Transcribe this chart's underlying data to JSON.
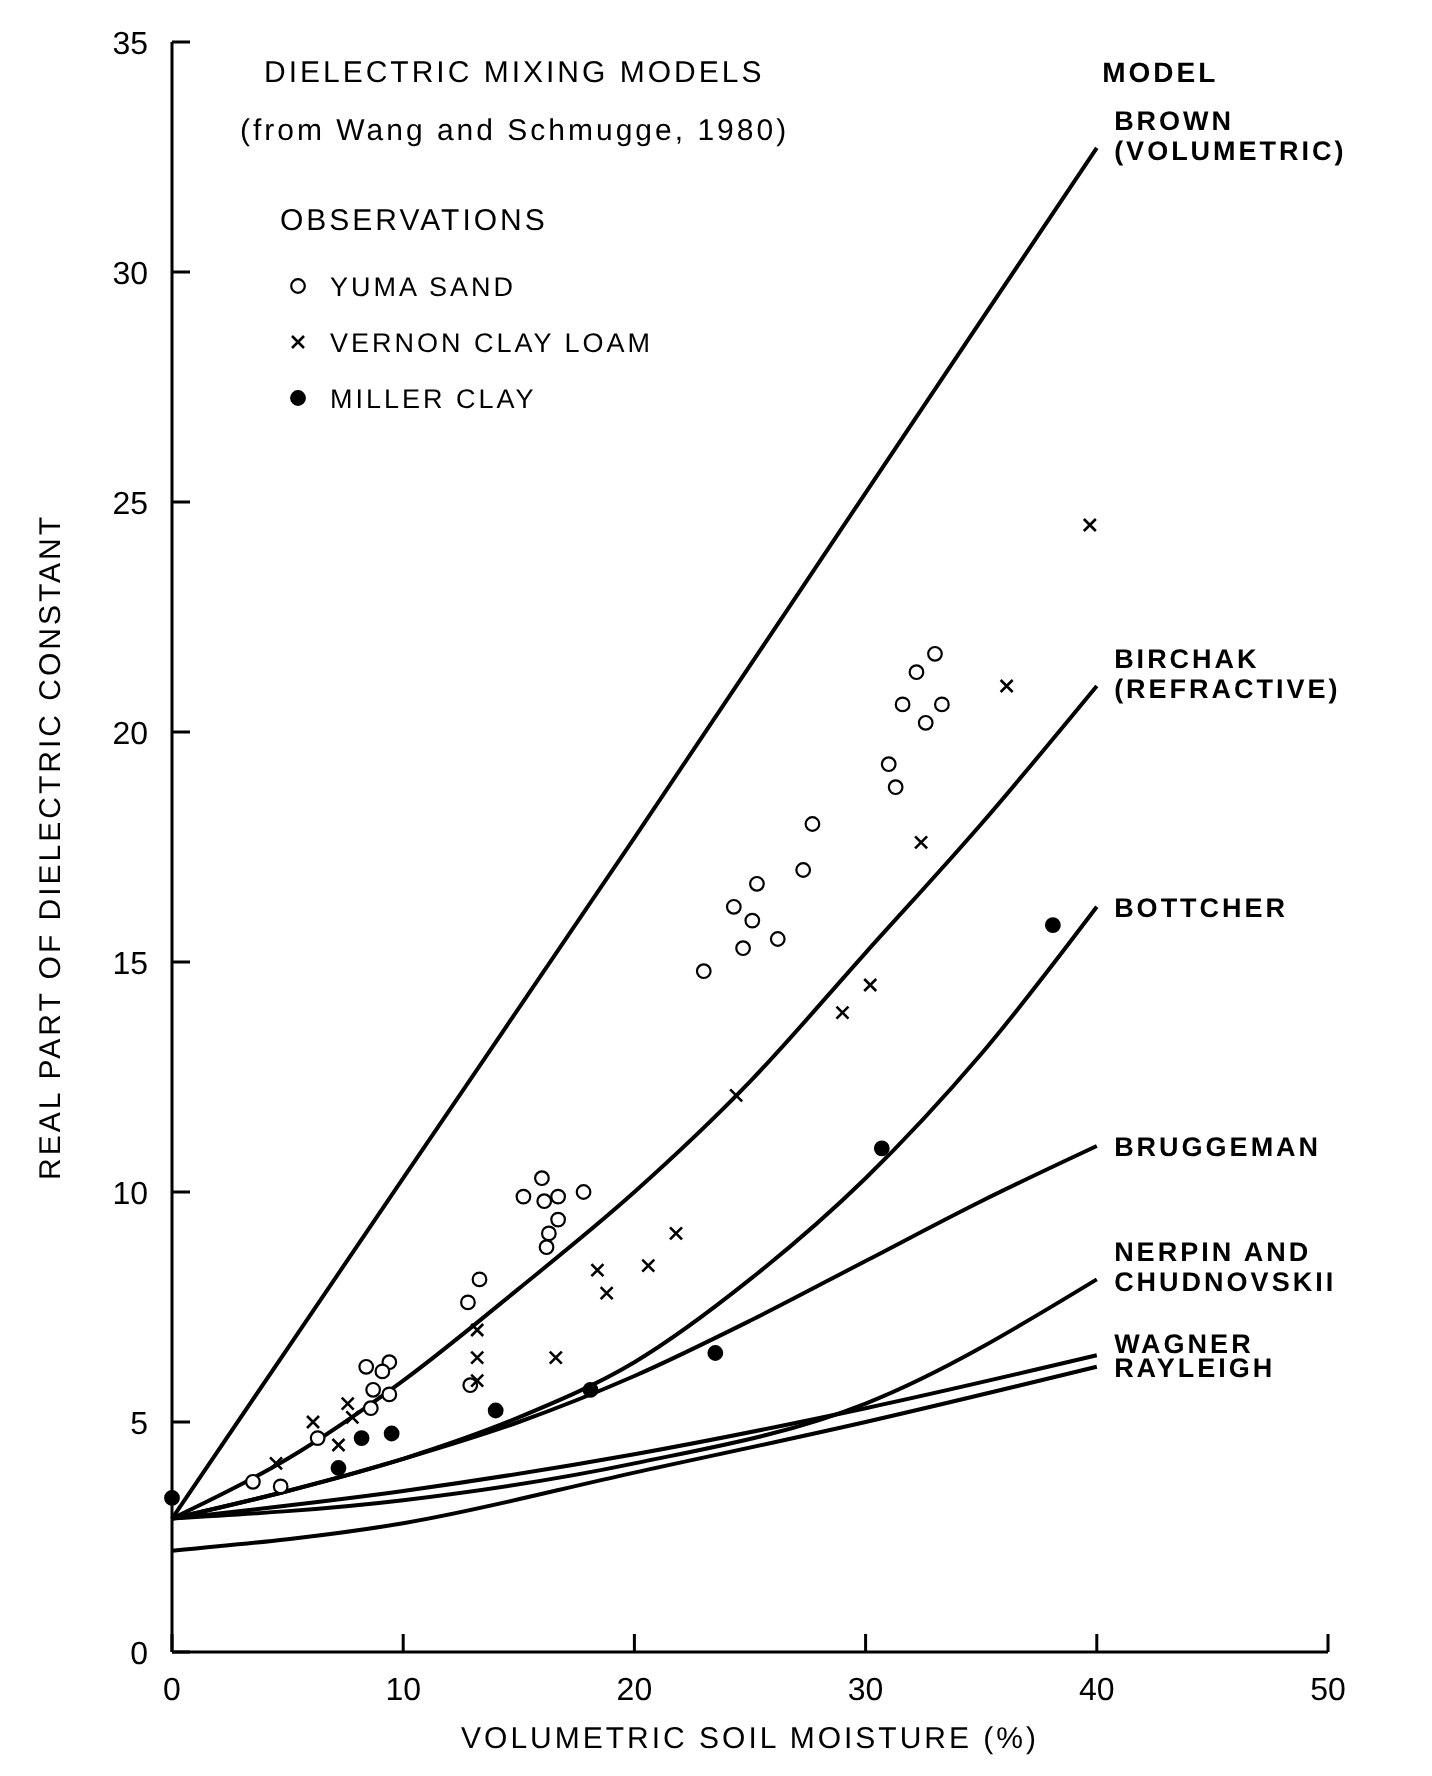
{
  "chart_data": {
    "type": "line",
    "title": "DIELECTRIC MIXING MODELS",
    "subtitle": "(from Wang and Schmugge, 1980)",
    "xlabel": "VOLUMETRIC SOIL MOISTURE (%)",
    "ylabel": "REAL PART OF DIELECTRIC CONSTANT",
    "legend_title": "OBSERVATIONS",
    "legend": "top left",
    "annotations": [
      "MODEL"
    ],
    "xlim": [
      0,
      50
    ],
    "ylim": [
      0,
      35
    ],
    "xticks": [
      0,
      10,
      20,
      30,
      40,
      50
    ],
    "yticks": [
      0,
      5,
      10,
      15,
      20,
      25,
      30,
      35
    ],
    "grid": false,
    "series": [
      {
        "name": "BROWN (VOLUMETRIC)",
        "color": "#000000",
        "marker": "none",
        "x": [
          0,
          10,
          20,
          30,
          40
        ],
        "values": [
          2.9,
          10.3,
          17.7,
          25.2,
          32.7
        ]
      },
      {
        "name": "BIRCHAK (REFRACTIVE)",
        "color": "#000000",
        "marker": "none",
        "x": [
          0,
          5,
          10,
          15,
          20,
          25,
          30,
          35,
          40
        ],
        "values": [
          2.9,
          4.2,
          5.9,
          7.9,
          10.0,
          12.4,
          15.2,
          18.0,
          21.0
        ]
      },
      {
        "name": "BOTTCHER",
        "color": "#000000",
        "marker": "none",
        "x": [
          0,
          5,
          10,
          15,
          20,
          25,
          30,
          35,
          40
        ],
        "values": [
          2.9,
          3.5,
          4.2,
          5.1,
          6.3,
          8.1,
          10.3,
          13.0,
          16.2
        ]
      },
      {
        "name": "BRUGGEMAN",
        "color": "#000000",
        "marker": "none",
        "x": [
          0,
          5,
          10,
          15,
          20,
          25,
          30,
          35,
          40
        ],
        "values": [
          2.9,
          3.5,
          4.2,
          5.0,
          6.0,
          7.2,
          8.5,
          9.8,
          11.0
        ]
      },
      {
        "name": "NERPIN AND CHUDNOVSKII",
        "color": "#000000",
        "marker": "none",
        "x": [
          0,
          10,
          20,
          30,
          40
        ],
        "values": [
          2.9,
          3.3,
          4.1,
          5.4,
          8.1
        ]
      },
      {
        "name": "WAGNER",
        "color": "#000000",
        "marker": "none",
        "x": [
          0,
          10,
          20,
          30,
          40
        ],
        "values": [
          2.9,
          3.5,
          4.3,
          5.3,
          6.45
        ]
      },
      {
        "name": "RAYLEIGH",
        "color": "#000000",
        "marker": "none",
        "x": [
          0,
          10,
          20,
          30,
          40
        ],
        "values": [
          2.2,
          2.8,
          3.9,
          5.0,
          6.2
        ]
      },
      {
        "name": "YUMA SAND",
        "type": "scatter",
        "color": "#ffffff",
        "marker": "circle",
        "x": [
          3.5,
          4.7,
          6.3,
          8.4,
          8.7,
          8.6,
          9.4,
          9.4,
          9.1,
          12.8,
          13.3,
          12.9,
          16.0,
          15.2,
          16.7,
          17.8,
          16.1,
          16.7,
          16.3,
          16.2,
          23.0,
          24.7,
          26.2,
          25.1,
          24.3,
          27.3,
          25.3,
          27.7,
          31.3,
          31.0,
          32.6,
          33.3,
          31.6,
          32.2,
          33.0
        ],
        "values": [
          3.7,
          3.6,
          4.65,
          6.2,
          5.7,
          5.3,
          6.3,
          5.6,
          6.1,
          7.6,
          8.1,
          5.8,
          10.3,
          9.9,
          9.9,
          10.0,
          9.8,
          9.4,
          9.1,
          8.8,
          14.8,
          15.3,
          15.5,
          15.9,
          16.2,
          17.0,
          16.7,
          18.0,
          18.8,
          19.3,
          20.2,
          20.6,
          20.6,
          21.3,
          21.7
        ]
      },
      {
        "name": "VERNON CLAY LOAM",
        "type": "scatter",
        "color": "#000000",
        "marker": "cross",
        "x": [
          4.5,
          6.1,
          7.2,
          7.6,
          7.8,
          13.2,
          13.2,
          13.2,
          16.6,
          18.4,
          18.8,
          20.6,
          21.8,
          24.4,
          29.0,
          30.2,
          32.4,
          36.1,
          39.7
        ],
        "values": [
          4.1,
          5.0,
          4.5,
          5.4,
          5.1,
          7.0,
          6.4,
          5.9,
          6.4,
          8.3,
          7.8,
          8.4,
          9.1,
          12.1,
          13.9,
          14.5,
          17.6,
          21.0,
          24.5
        ]
      },
      {
        "name": "MILLER CLAY",
        "type": "scatter",
        "color": "#000000",
        "marker": "circle",
        "x": [
          0,
          7.2,
          8.2,
          9.5,
          14.0,
          18.1,
          23.5,
          30.7,
          38.1
        ],
        "values": [
          3.35,
          4.0,
          4.65,
          4.75,
          5.25,
          5.7,
          6.5,
          10.95,
          15.8
        ]
      }
    ]
  }
}
